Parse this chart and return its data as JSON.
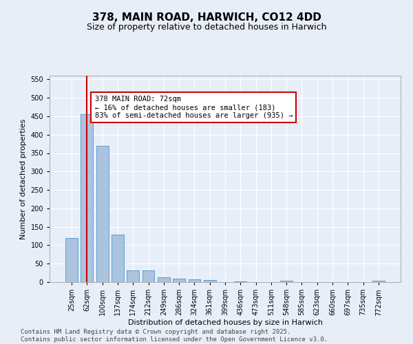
{
  "title": "378, MAIN ROAD, HARWICH, CO12 4DD",
  "subtitle": "Size of property relative to detached houses in Harwich",
  "xlabel": "Distribution of detached houses by size in Harwich",
  "ylabel": "Number of detached properties",
  "categories": [
    "25sqm",
    "62sqm",
    "100sqm",
    "137sqm",
    "174sqm",
    "212sqm",
    "249sqm",
    "286sqm",
    "324sqm",
    "361sqm",
    "399sqm",
    "436sqm",
    "473sqm",
    "511sqm",
    "548sqm",
    "585sqm",
    "623sqm",
    "660sqm",
    "697sqm",
    "735sqm",
    "772sqm"
  ],
  "values": [
    120,
    455,
    370,
    128,
    32,
    32,
    13,
    10,
    7,
    5,
    0,
    2,
    0,
    0,
    3,
    0,
    0,
    0,
    0,
    0,
    3
  ],
  "bar_color": "#aac4e0",
  "bar_edge_color": "#5a9ecf",
  "vline_x_index": 1,
  "vline_color": "#cc0000",
  "annotation_text": "378 MAIN ROAD: 72sqm\n← 16% of detached houses are smaller (183)\n83% of semi-detached houses are larger (935) →",
  "annotation_box_color": "#ffffff",
  "annotation_border_color": "#cc0000",
  "ylim": [
    0,
    560
  ],
  "yticks": [
    0,
    50,
    100,
    150,
    200,
    250,
    300,
    350,
    400,
    450,
    500,
    550
  ],
  "background_color": "#e8eef8",
  "grid_color": "#ffffff",
  "footer": "Contains HM Land Registry data © Crown copyright and database right 2025.\nContains public sector information licensed under the Open Government Licence v3.0.",
  "title_fontsize": 11,
  "subtitle_fontsize": 9,
  "axis_label_fontsize": 8,
  "tick_fontsize": 7,
  "annotation_fontsize": 7.5,
  "footer_fontsize": 6.5
}
